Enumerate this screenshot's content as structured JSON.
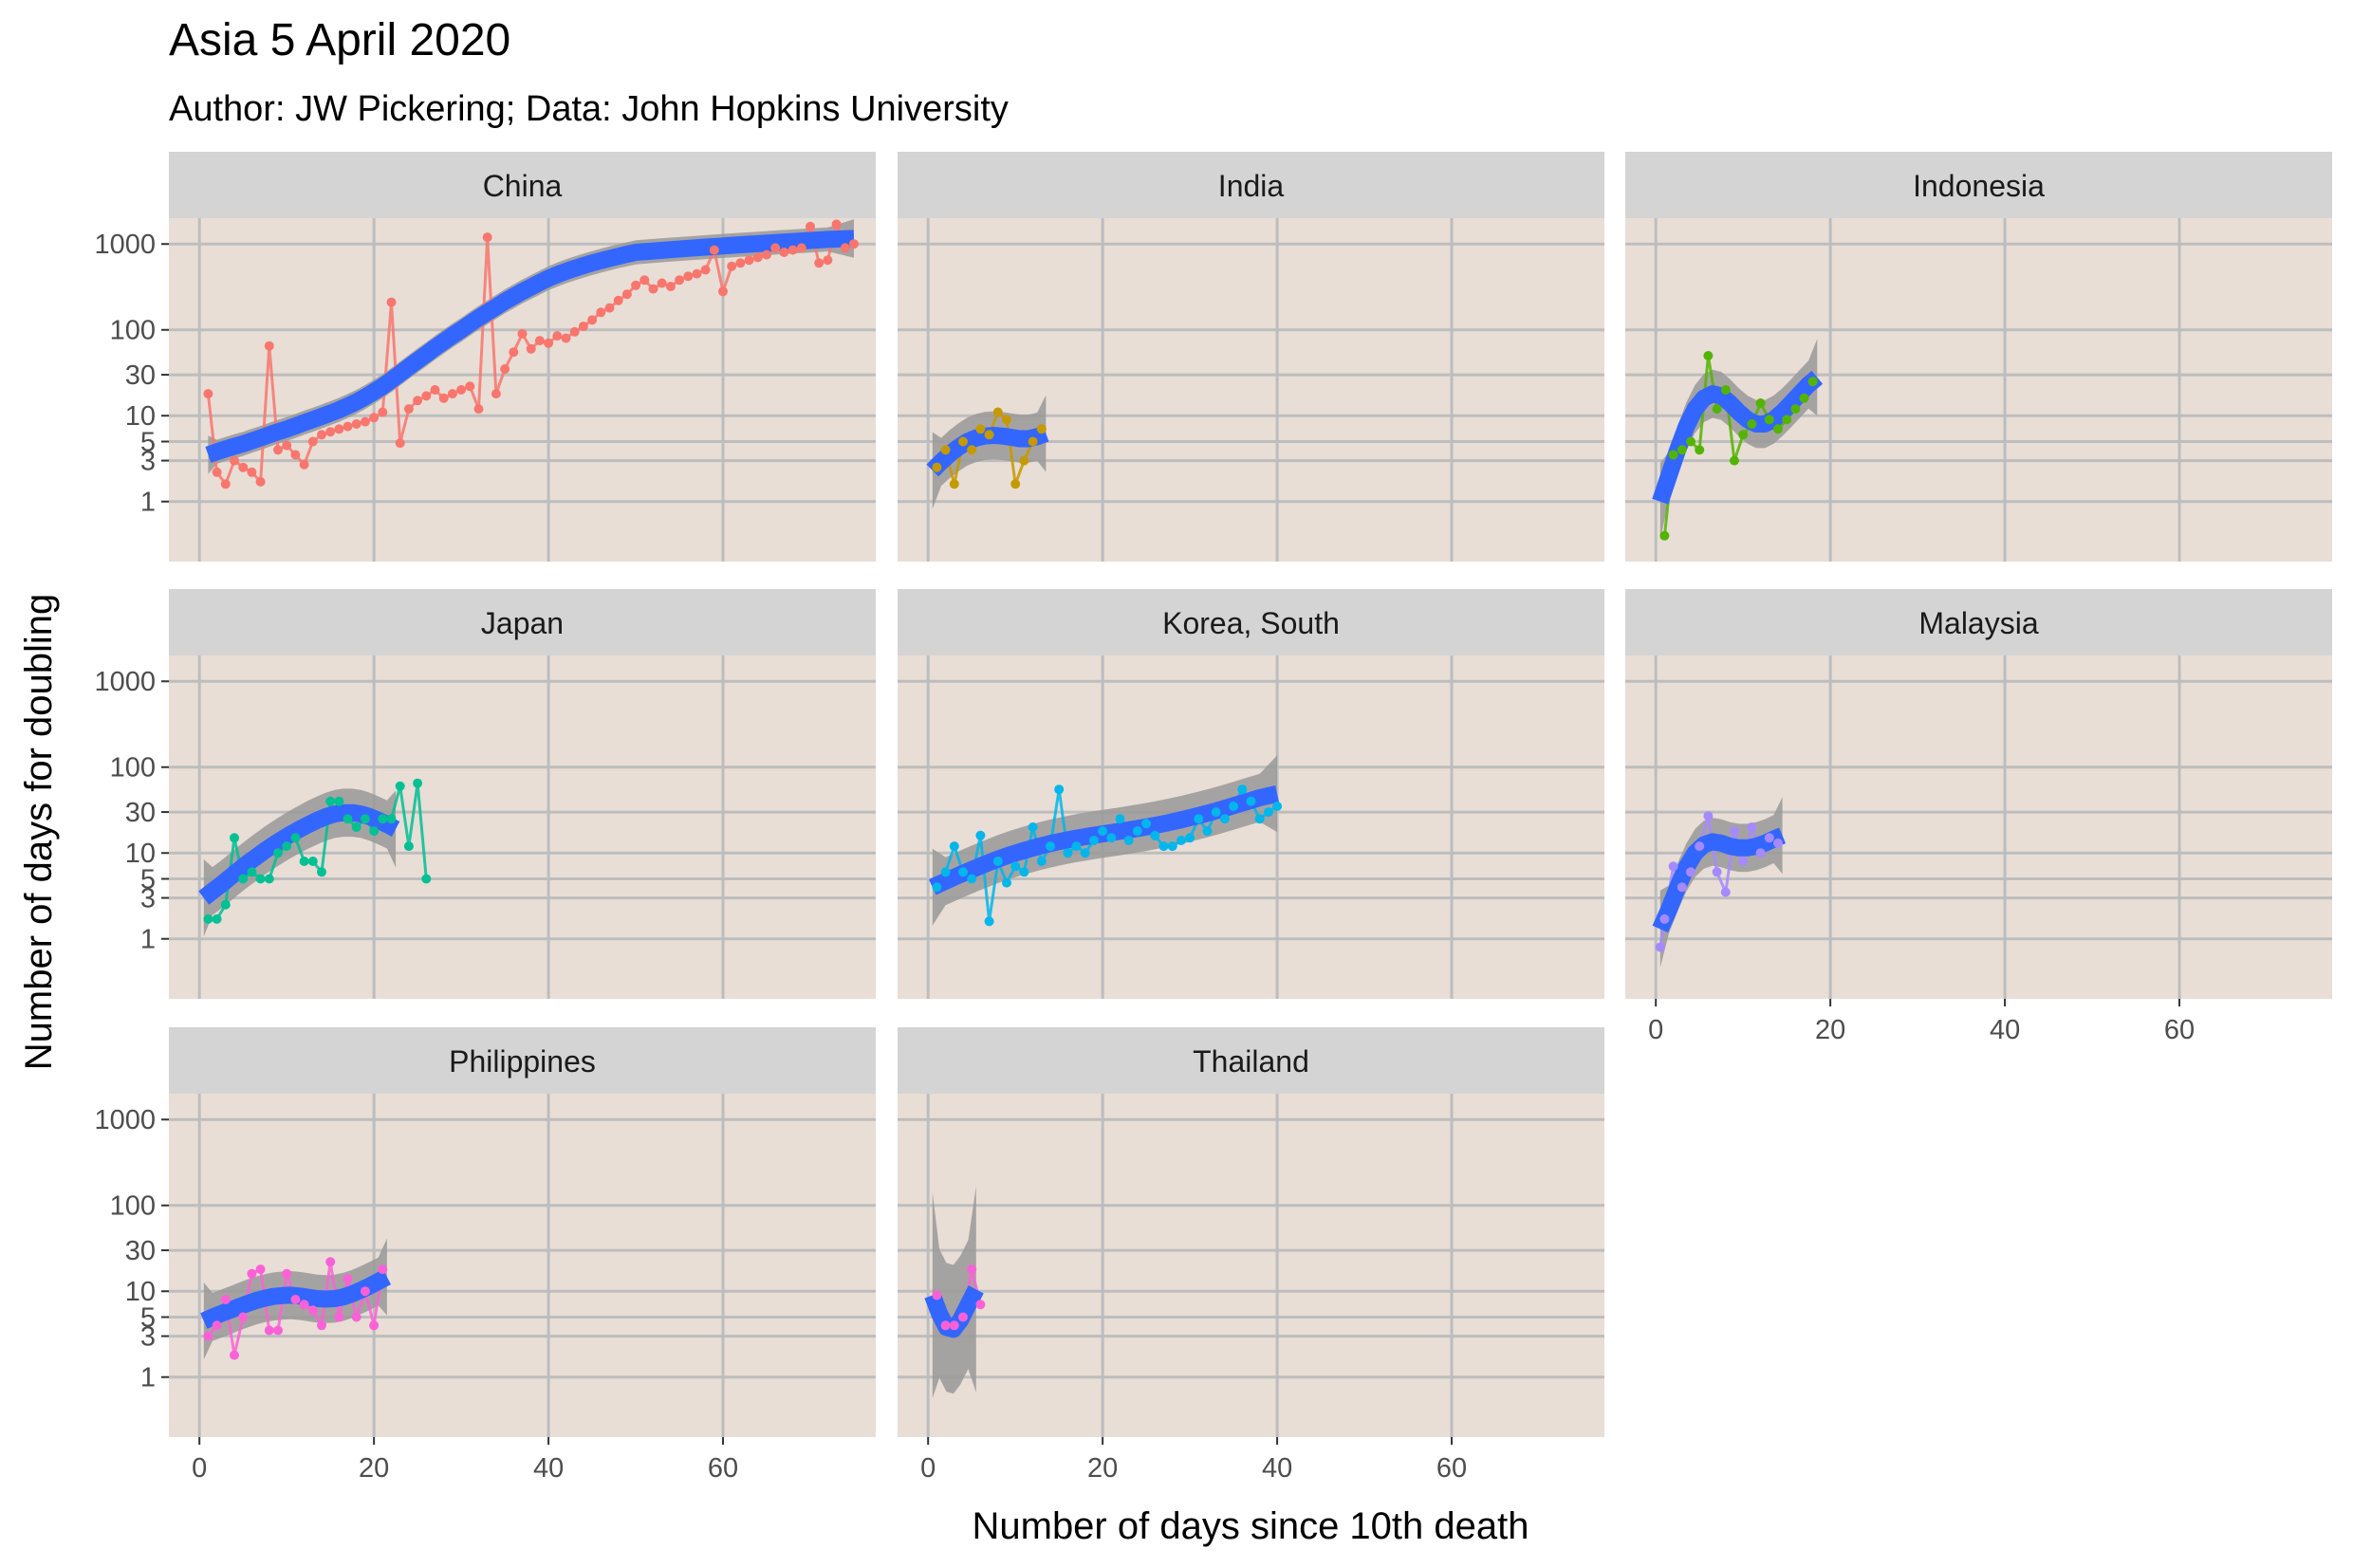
{
  "chart_data": {
    "type": "line",
    "title": "Asia 5 April 2020",
    "subtitle": "Author: JW Pickering; Data: John Hopkins University",
    "xlabel": "Number of days since 10th death",
    "ylabel": "Number of days for doubling",
    "y_scale": "log10",
    "x_ticks": [
      0,
      20,
      40,
      60
    ],
    "y_ticks": [
      1,
      3,
      5,
      10,
      30,
      100,
      1000
    ],
    "y_tick_labels": [
      "1",
      "3",
      "5",
      "10",
      "30",
      "100",
      "1000"
    ],
    "xlim": [
      -3.5,
      77.5
    ],
    "ylim": [
      0.2,
      2000
    ],
    "grid": true,
    "facets": [
      {
        "name": "China",
        "color": "#F8766D",
        "x": [
          1,
          2,
          3,
          4,
          5,
          6,
          7,
          8,
          9,
          10,
          11,
          12,
          13,
          14,
          15,
          16,
          17,
          18,
          19,
          20,
          21,
          22,
          23,
          24,
          25,
          26,
          27,
          28,
          29,
          30,
          31,
          32,
          33,
          34,
          35,
          36,
          37,
          38,
          39,
          40,
          41,
          42,
          43,
          44,
          45,
          46,
          47,
          48,
          49,
          50,
          51,
          52,
          53,
          54,
          55,
          56,
          57,
          58,
          59,
          60,
          61,
          62,
          63,
          64,
          65,
          66,
          67,
          68,
          69,
          70,
          71,
          72,
          73,
          74,
          75
        ],
        "y": [
          18,
          2.2,
          1.6,
          3,
          2.5,
          2.2,
          1.7,
          65,
          4,
          4.5,
          3.5,
          2.7,
          5,
          6,
          6.5,
          7,
          7.5,
          8,
          8.5,
          9.5,
          11,
          210,
          4.8,
          12,
          15,
          17,
          20,
          16,
          18,
          20,
          22,
          12,
          1200,
          18,
          35,
          55,
          90,
          60,
          75,
          70,
          85,
          80,
          95,
          110,
          130,
          160,
          180,
          220,
          260,
          330,
          380,
          300,
          350,
          320,
          380,
          420,
          450,
          500,
          850,
          280,
          550,
          600,
          650,
          700,
          750,
          900,
          800,
          850,
          900,
          1600,
          600,
          650,
          1700,
          900,
          1000
        ],
        "fit": [
          3.5,
          3.8,
          4.1,
          4.4,
          4.7,
          5.1,
          5.5,
          6,
          6.5,
          7,
          7.6,
          8.3,
          9,
          9.8,
          10.7,
          11.7,
          13,
          14.5,
          16.5,
          19,
          22,
          26,
          31,
          37,
          44,
          52,
          62,
          73,
          86,
          100,
          118,
          138,
          160,
          185,
          215,
          245,
          280,
          315,
          355,
          400,
          440,
          480,
          520,
          560,
          600,
          640,
          680,
          720,
          760,
          800,
          830,
          860,
          890,
          920,
          950,
          980,
          1010,
          1040,
          1070,
          1100,
          1130,
          1160
        ],
        "fit_x": [
          1,
          2,
          3,
          4,
          5,
          6,
          7,
          8,
          9,
          10,
          11,
          12,
          13,
          14,
          15,
          16,
          17,
          18,
          19,
          20,
          21,
          22,
          23,
          24,
          25,
          26,
          27,
          28,
          29,
          30,
          31,
          32,
          33,
          34,
          35,
          36,
          37,
          38,
          39,
          40,
          41,
          42,
          43,
          44,
          45,
          46,
          47,
          48,
          49,
          50,
          52,
          54,
          56,
          58,
          60,
          62,
          64,
          66,
          68,
          70,
          72,
          75
        ]
      },
      {
        "name": "India",
        "color": "#C49A00",
        "x": [
          1,
          2,
          3,
          4,
          5,
          6,
          7,
          8,
          9,
          10,
          11,
          12,
          13
        ],
        "y": [
          2.5,
          4,
          1.6,
          5,
          4,
          7,
          6,
          11,
          9,
          1.6,
          3,
          5,
          7
        ],
        "fit": [
          2.3,
          2.9,
          3.6,
          4.3,
          5,
          5.5,
          5.8,
          5.9,
          5.8,
          5.6,
          5.4,
          5.4,
          5.7,
          6.2
        ],
        "fit_x": [
          0.5,
          1.5,
          2.5,
          3.5,
          4.5,
          5.5,
          6.5,
          7.5,
          8.5,
          9.5,
          10.5,
          11.5,
          12.5,
          13.5
        ]
      },
      {
        "name": "Indonesia",
        "color": "#53B400",
        "x": [
          1,
          2,
          3,
          4,
          5,
          6,
          7,
          8,
          9,
          10,
          11,
          12,
          13,
          14,
          15,
          16,
          17,
          18
        ],
        "y": [
          0.4,
          3.5,
          4,
          5,
          4,
          50,
          12,
          20,
          3,
          6,
          8,
          14,
          9,
          7,
          9,
          12,
          16,
          25
        ],
        "fit": [
          1,
          2,
          4,
          7.5,
          12,
          16,
          18,
          17,
          14,
          11,
          9,
          8,
          8,
          9,
          11,
          14,
          18,
          23,
          28
        ],
        "fit_x": [
          0.5,
          1.5,
          2.5,
          3.5,
          4.5,
          5.5,
          6.5,
          7.5,
          8.5,
          9.5,
          10.5,
          11.5,
          12.5,
          13.5,
          14.5,
          15.5,
          16.5,
          17.5,
          18.5
        ]
      },
      {
        "name": "Japan",
        "color": "#00C094",
        "x": [
          1,
          2,
          3,
          4,
          5,
          6,
          7,
          8,
          9,
          10,
          11,
          12,
          13,
          14,
          15,
          16,
          17,
          18,
          19,
          20,
          21,
          22,
          23,
          24,
          25,
          26
        ],
        "y": [
          1.7,
          1.7,
          2.5,
          15,
          5,
          6,
          5,
          5,
          10,
          12,
          15,
          8,
          8,
          6,
          40,
          40,
          25,
          20,
          25,
          18,
          25,
          25,
          60,
          12,
          65,
          5
        ],
        "fit": [
          3,
          3.6,
          4.3,
          5.2,
          6.3,
          7.6,
          9,
          10.7,
          12.5,
          14.5,
          16.7,
          19,
          21.5,
          24,
          26.5,
          28.5,
          29.5,
          29.5,
          28.5,
          26.5,
          24,
          21.5,
          19
        ],
        "fit_x": [
          0.5,
          1.5,
          2.5,
          3.5,
          4.5,
          5.5,
          6.5,
          7.5,
          8.5,
          9.5,
          10.5,
          11.5,
          12.5,
          13.5,
          14.5,
          15.5,
          16.5,
          17.5,
          18.5,
          19.5,
          20.5,
          21.5,
          22.5
        ]
      },
      {
        "name": "Korea, South",
        "color": "#00B6EB",
        "x": [
          1,
          2,
          3,
          4,
          5,
          6,
          7,
          8,
          9,
          10,
          11,
          12,
          13,
          14,
          15,
          16,
          17,
          18,
          19,
          20,
          21,
          22,
          23,
          24,
          25,
          26,
          27,
          28,
          29,
          30,
          31,
          32,
          33,
          34,
          35,
          36,
          37,
          38,
          39,
          40
        ],
        "y": [
          4,
          6,
          12,
          6,
          5,
          16,
          1.6,
          8,
          4.5,
          7,
          6,
          20,
          8,
          12,
          55,
          10,
          12,
          10,
          14,
          18,
          15,
          25,
          14,
          18,
          22,
          16,
          12,
          12,
          14,
          15,
          25,
          18,
          30,
          25,
          35,
          55,
          40,
          25,
          30,
          35
        ],
        "fit": [
          4,
          4.7,
          5.5,
          6.4,
          7.4,
          8.5,
          9.6,
          10.7,
          11.8,
          12.9,
          13.9,
          14.9,
          15.8,
          16.7,
          17.6,
          18.6,
          19.7,
          21,
          22.5,
          24.3,
          26.5,
          29,
          32,
          35.5,
          39.5,
          44,
          49
        ],
        "fit_x": [
          0.5,
          2,
          3.5,
          5,
          6.5,
          8,
          9.5,
          11,
          12.5,
          14,
          15.5,
          17,
          18.5,
          20,
          21.5,
          23,
          24.5,
          26,
          27.5,
          29,
          30.5,
          32,
          33.5,
          35,
          36.5,
          38,
          40
        ]
      },
      {
        "name": "Malaysia",
        "color": "#A58AFF",
        "x": [
          0.5,
          1,
          2,
          3,
          4,
          5,
          6,
          7,
          8,
          9,
          10,
          11,
          12,
          13,
          14
        ],
        "y": [
          0.8,
          1.7,
          7,
          4,
          6,
          12,
          27,
          6,
          3.5,
          18,
          8,
          20,
          10,
          15,
          13
        ],
        "fit": [
          1.3,
          2.2,
          4,
          6.8,
          10,
          12.5,
          13.5,
          13,
          12,
          11.5,
          11.5,
          12,
          13,
          14.5,
          16
        ],
        "fit_x": [
          0.5,
          1.5,
          2.5,
          3.5,
          4.5,
          5.5,
          6.5,
          7.5,
          8.5,
          9.5,
          10.5,
          11.5,
          12.5,
          13.5,
          14.5
        ]
      },
      {
        "name": "Philippines",
        "color": "#FB61D7",
        "x": [
          1,
          2,
          3,
          4,
          5,
          6,
          7,
          8,
          9,
          10,
          11,
          12,
          13,
          14,
          15,
          16,
          17,
          18,
          19,
          20,
          21
        ],
        "y": [
          3,
          4,
          8,
          1.8,
          5,
          16,
          18,
          3.5,
          3.5,
          16,
          8,
          7,
          6,
          4,
          22,
          5,
          14,
          5,
          10,
          4,
          18
        ],
        "fit": [
          4.5,
          5,
          5.5,
          6,
          6.6,
          7.2,
          7.8,
          8.3,
          8.7,
          8.9,
          9,
          8.8,
          8.5,
          8.2,
          8.1,
          8.2,
          8.6,
          9.3,
          10.3,
          11.5,
          13,
          14.7
        ],
        "fit_x": [
          0.5,
          1.5,
          2.5,
          3.5,
          4.5,
          5.5,
          6.5,
          7.5,
          8.5,
          9.5,
          10.5,
          11.5,
          12.5,
          13.5,
          14.5,
          15.5,
          16.5,
          17.5,
          18.5,
          19.5,
          20.5,
          21.5
        ]
      },
      {
        "name": "Thailand",
        "color": "#FB61D7",
        "x": [
          1,
          2,
          3,
          4,
          5,
          6
        ],
        "y": [
          9,
          4,
          4,
          5,
          18,
          7
        ],
        "fit": [
          9,
          5.5,
          3.8,
          3.6,
          4.6,
          7,
          10.5
        ],
        "fit_x": [
          0.5,
          1.3,
          2.1,
          2.9,
          3.7,
          4.6,
          5.5
        ]
      }
    ],
    "smoother_color": "#3366FF",
    "ribbon_color": "#999999"
  }
}
